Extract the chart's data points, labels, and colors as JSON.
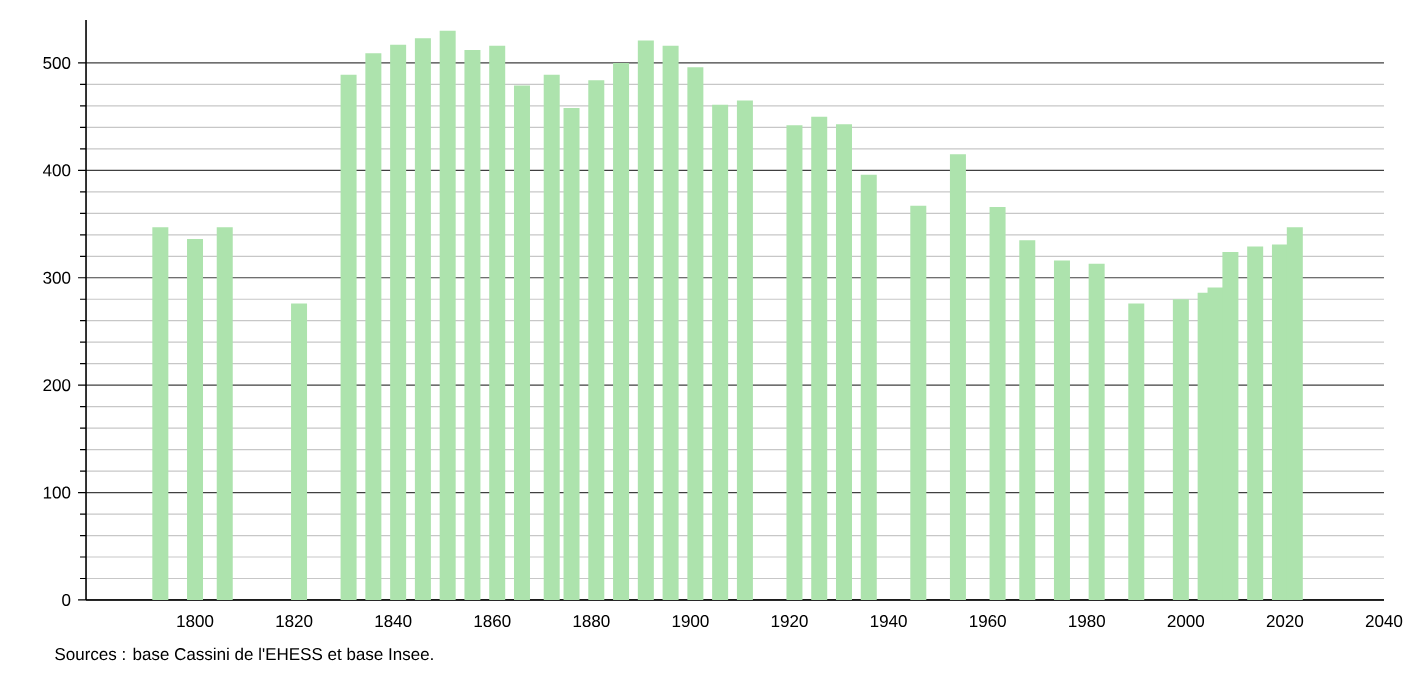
{
  "chart_data": {
    "type": "bar",
    "x": [
      1793,
      1800,
      1806,
      1821,
      1831,
      1836,
      1841,
      1846,
      1851,
      1856,
      1861,
      1866,
      1872,
      1876,
      1881,
      1886,
      1891,
      1896,
      1901,
      1906,
      1911,
      1921,
      1926,
      1931,
      1936,
      1946,
      1954,
      1962,
      1968,
      1975,
      1982,
      1990,
      1999,
      2004,
      2006,
      2009,
      2014,
      2019,
      2022
    ],
    "values": [
      347,
      336,
      347,
      276,
      489,
      509,
      517,
      523,
      530,
      512,
      516,
      479,
      489,
      458,
      484,
      500,
      521,
      516,
      496,
      461,
      465,
      442,
      450,
      443,
      396,
      367,
      415,
      366,
      335,
      316,
      313,
      276,
      280,
      286,
      291,
      324,
      329,
      331,
      347
    ],
    "color": "#ade3ad",
    "xlim": [
      1778,
      2040
    ],
    "xticks": [
      1800,
      1820,
      1840,
      1860,
      1880,
      1900,
      1920,
      1940,
      1960,
      1980,
      2000,
      2020,
      2040
    ],
    "ylim": [
      0,
      540
    ],
    "yticks": [
      0,
      100,
      200,
      300,
      400,
      500
    ],
    "grid": "y",
    "annotations": [
      "Sources : base Cassini de l'EHESS et base Insee."
    ]
  }
}
